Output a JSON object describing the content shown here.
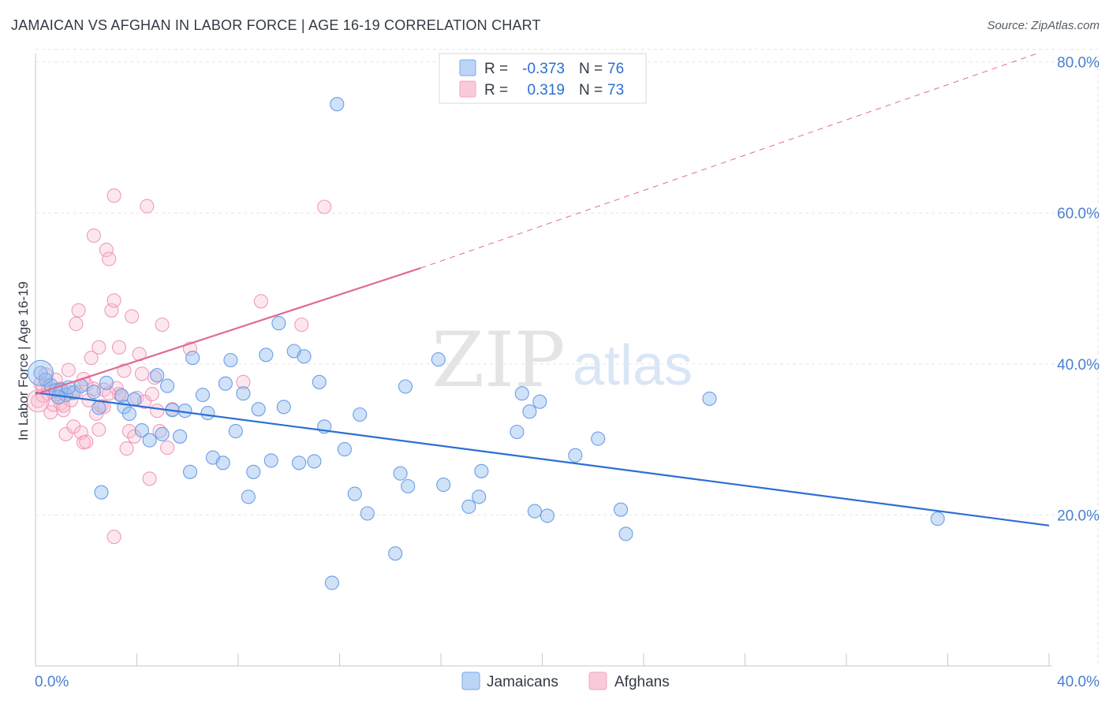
{
  "title": "JAMAICAN VS AFGHAN IN LABOR FORCE | AGE 16-19 CORRELATION CHART",
  "source": "Source: ZipAtlas.com",
  "watermark": {
    "zip": "ZIP",
    "atlas": "atlas"
  },
  "colors": {
    "jamaicans": "#7aaae8",
    "jamaicans_line": "#2b6fd3",
    "afghans": "#f4a4bf",
    "afghans_line": "#e06a93",
    "axis_text": "#4a7fd0",
    "grid": "#e6e6ea"
  },
  "chart_data": {
    "type": "scatter",
    "title": "JAMAICAN VS AFGHAN IN LABOR FORCE | AGE 16-19 CORRELATION CHART",
    "xlabel": "",
    "ylabel": "In Labor Force | Age 16-19",
    "xlim": [
      0,
      40
    ],
    "ylim": [
      0,
      82
    ],
    "x_tick_labels": [
      "0.0%",
      "40.0%"
    ],
    "y_ticks": [
      20,
      40,
      60,
      80
    ],
    "y_tick_labels": [
      "20.0%",
      "40.0%",
      "60.0%",
      "80.0%"
    ],
    "grid": true,
    "legend_placement": "top-center",
    "stats": [
      {
        "series": "Jamaicans",
        "r_label": "R =",
        "r": "-0.373",
        "n_label": "N =",
        "n": "76"
      },
      {
        "series": "Afghans",
        "r_label": "R =",
        "r": "0.319",
        "n_label": "N =",
        "n": "73"
      }
    ],
    "series": [
      {
        "name": "Jamaicans",
        "trend": {
          "x": [
            0,
            40
          ],
          "y": [
            36.2,
            18.6
          ],
          "dashed_after": null
        },
        "points": [
          [
            0.2,
            38.8
          ],
          [
            0.4,
            37.9
          ],
          [
            0.6,
            37.2
          ],
          [
            0.8,
            36.5
          ],
          [
            1.0,
            36.6
          ],
          [
            1.2,
            35.9
          ],
          [
            1.5,
            36.2
          ],
          [
            1.8,
            37.1
          ],
          [
            2.5,
            34.2
          ],
          [
            2.8,
            37.5
          ],
          [
            3.4,
            35.8
          ],
          [
            3.5,
            34.3
          ],
          [
            3.7,
            33.4
          ],
          [
            3.9,
            35.3
          ],
          [
            4.2,
            31.2
          ],
          [
            4.5,
            29.9
          ],
          [
            4.8,
            38.5
          ],
          [
            5.0,
            30.7
          ],
          [
            5.2,
            37.1
          ],
          [
            5.4,
            33.9
          ],
          [
            5.7,
            30.4
          ],
          [
            5.9,
            33.8
          ],
          [
            6.1,
            25.7
          ],
          [
            6.2,
            40.8
          ],
          [
            6.6,
            35.9
          ],
          [
            6.8,
            33.5
          ],
          [
            7.0,
            27.6
          ],
          [
            7.4,
            26.9
          ],
          [
            7.5,
            37.4
          ],
          [
            7.7,
            40.5
          ],
          [
            7.9,
            31.1
          ],
          [
            8.2,
            36.1
          ],
          [
            8.4,
            22.4
          ],
          [
            8.6,
            25.7
          ],
          [
            8.8,
            34.0
          ],
          [
            9.1,
            41.2
          ],
          [
            9.3,
            27.2
          ],
          [
            9.6,
            45.4
          ],
          [
            9.8,
            34.3
          ],
          [
            10.2,
            41.7
          ],
          [
            10.4,
            26.9
          ],
          [
            10.6,
            41.0
          ],
          [
            11.0,
            27.1
          ],
          [
            11.2,
            37.6
          ],
          [
            11.4,
            31.7
          ],
          [
            11.7,
            11.0
          ],
          [
            11.9,
            74.4
          ],
          [
            12.2,
            28.7
          ],
          [
            12.6,
            22.8
          ],
          [
            12.8,
            33.3
          ],
          [
            13.1,
            20.2
          ],
          [
            14.2,
            14.9
          ],
          [
            14.4,
            25.5
          ],
          [
            14.6,
            37.0
          ],
          [
            14.7,
            23.8
          ],
          [
            15.9,
            40.6
          ],
          [
            16.1,
            24.0
          ],
          [
            17.1,
            21.1
          ],
          [
            17.5,
            22.4
          ],
          [
            17.6,
            25.8
          ],
          [
            19.0,
            31.0
          ],
          [
            19.2,
            36.1
          ],
          [
            19.5,
            33.7
          ],
          [
            19.7,
            20.5
          ],
          [
            19.9,
            35.0
          ],
          [
            20.2,
            19.9
          ],
          [
            21.3,
            27.9
          ],
          [
            22.2,
            30.1
          ],
          [
            23.1,
            20.7
          ],
          [
            23.3,
            17.5
          ],
          [
            26.6,
            35.4
          ],
          [
            35.6,
            19.5
          ],
          [
            2.6,
            23.0
          ],
          [
            1.3,
            36.9
          ],
          [
            0.9,
            35.6
          ],
          [
            2.3,
            36.3
          ]
        ]
      },
      {
        "name": "Afghans",
        "trend": {
          "x": [
            0,
            15.2
          ],
          "y": [
            36.0,
            52.7
          ],
          "dashed_to": [
            39.6,
            81.2
          ]
        },
        "points": [
          [
            0.1,
            35.1
          ],
          [
            0.2,
            37.4
          ],
          [
            0.3,
            36.9
          ],
          [
            0.4,
            38.6
          ],
          [
            0.5,
            36.1
          ],
          [
            0.6,
            33.6
          ],
          [
            0.7,
            34.6
          ],
          [
            0.8,
            37.9
          ],
          [
            0.9,
            36.5
          ],
          [
            1.0,
            34.8
          ],
          [
            1.1,
            33.9
          ],
          [
            1.2,
            30.7
          ],
          [
            1.3,
            39.2
          ],
          [
            1.4,
            35.2
          ],
          [
            1.5,
            31.7
          ],
          [
            1.6,
            45.3
          ],
          [
            1.7,
            47.1
          ],
          [
            1.8,
            30.9
          ],
          [
            1.9,
            29.6
          ],
          [
            2.0,
            29.7
          ],
          [
            2.1,
            35.2
          ],
          [
            2.2,
            40.8
          ],
          [
            2.3,
            36.7
          ],
          [
            2.4,
            33.4
          ],
          [
            2.5,
            42.2
          ],
          [
            2.6,
            34.4
          ],
          [
            2.7,
            34.3
          ],
          [
            2.8,
            55.1
          ],
          [
            2.9,
            53.9
          ],
          [
            3.0,
            47.1
          ],
          [
            3.1,
            48.4
          ],
          [
            3.2,
            36.8
          ],
          [
            3.3,
            42.2
          ],
          [
            3.4,
            35.8
          ],
          [
            3.5,
            39.1
          ],
          [
            3.6,
            28.8
          ],
          [
            3.7,
            31.1
          ],
          [
            3.8,
            46.3
          ],
          [
            3.9,
            30.4
          ],
          [
            4.0,
            35.5
          ],
          [
            4.1,
            41.3
          ],
          [
            4.2,
            38.7
          ],
          [
            4.3,
            35.0
          ],
          [
            4.4,
            60.9
          ],
          [
            4.5,
            24.8
          ],
          [
            4.6,
            36.0
          ],
          [
            4.7,
            38.2
          ],
          [
            4.8,
            33.8
          ],
          [
            4.9,
            31.1
          ],
          [
            5.0,
            45.2
          ],
          [
            5.2,
            28.9
          ],
          [
            5.4,
            34.0
          ],
          [
            6.1,
            42.0
          ],
          [
            8.2,
            37.6
          ],
          [
            8.9,
            48.3
          ],
          [
            10.5,
            45.2
          ],
          [
            11.4,
            60.8
          ],
          [
            3.1,
            62.3
          ],
          [
            2.3,
            57.0
          ],
          [
            3.1,
            17.1
          ],
          [
            1.4,
            36.2
          ],
          [
            0.5,
            37.1
          ],
          [
            1.1,
            34.5
          ],
          [
            2.0,
            37.3
          ],
          [
            0.3,
            35.8
          ],
          [
            0.8,
            36.0
          ],
          [
            2.5,
            31.3
          ],
          [
            1.6,
            36.3
          ],
          [
            2.7,
            36.6
          ],
          [
            3.3,
            36.0
          ],
          [
            1.9,
            38.0
          ],
          [
            1.0,
            36.7
          ],
          [
            2.9,
            36.1
          ]
        ]
      }
    ]
  }
}
